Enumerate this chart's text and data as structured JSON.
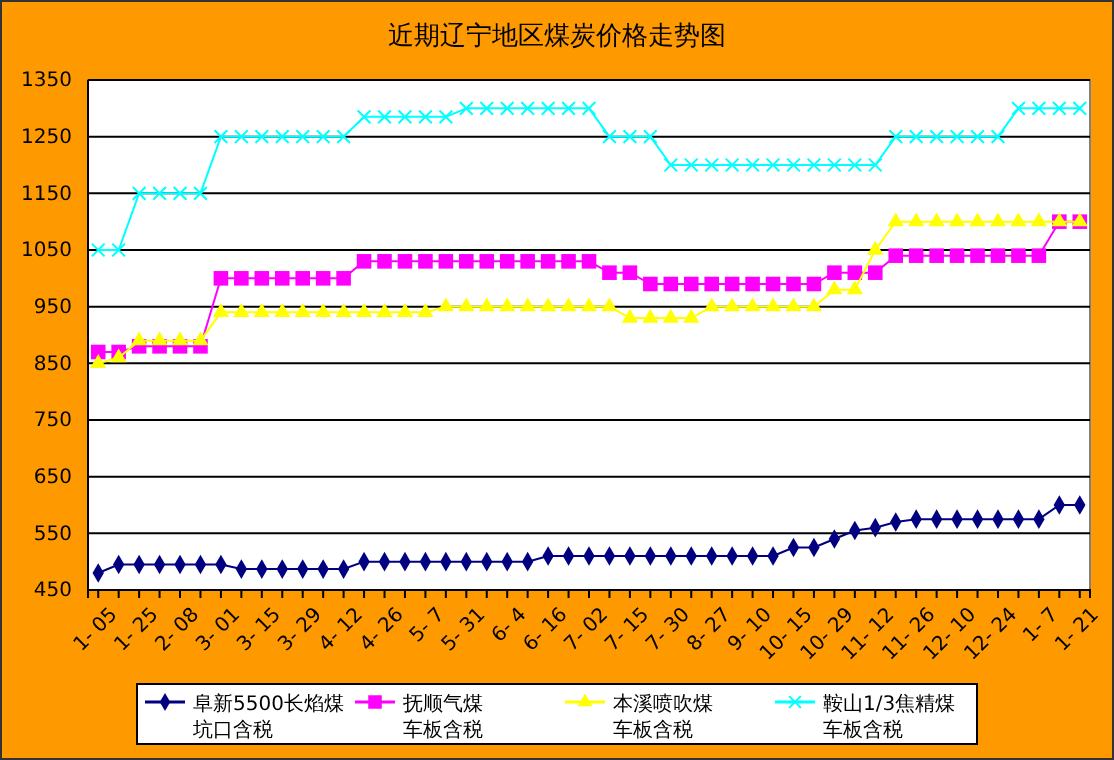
{
  "chart_data": {
    "type": "line",
    "title": "近期辽宁地区煤炭价格走势图",
    "categories": [
      "1- 05",
      null,
      "1- 25",
      null,
      "2- 08",
      null,
      "3- 01",
      null,
      "3- 15",
      null,
      "3- 29",
      null,
      "4- 12",
      null,
      "4- 26",
      null,
      "5- 7",
      null,
      "5- 31",
      null,
      "6- 4",
      null,
      "6- 16",
      null,
      "7- 02",
      null,
      "7- 15",
      null,
      "7- 30",
      null,
      "8- 27",
      null,
      "9- 10",
      null,
      "10- 15",
      null,
      "10- 29",
      null,
      "11- 12",
      null,
      "11- 26",
      null,
      "12- 10",
      null,
      "12- 24",
      null,
      "1- 7",
      null,
      "1- 21"
    ],
    "series": [
      {
        "name": "阜新5500长焰煤坑口含税",
        "color": "#000080",
        "marker": "diamond",
        "values": [
          480,
          495,
          495,
          495,
          495,
          495,
          495,
          487,
          487,
          487,
          487,
          487,
          487,
          500,
          500,
          500,
          500,
          500,
          500,
          500,
          500,
          500,
          510,
          510,
          510,
          510,
          510,
          510,
          510,
          510,
          510,
          510,
          510,
          510,
          525,
          525,
          540,
          555,
          560,
          570,
          575,
          575,
          575,
          575,
          575,
          575,
          575,
          600,
          600
        ]
      },
      {
        "name": "抚顺气煤车板含税",
        "color": "#ff00ff",
        "marker": "square",
        "values": [
          870,
          870,
          880,
          880,
          880,
          880,
          1000,
          1000,
          1000,
          1000,
          1000,
          1000,
          1000,
          1030,
          1030,
          1030,
          1030,
          1030,
          1030,
          1030,
          1030,
          1030,
          1030,
          1030,
          1030,
          1010,
          1010,
          990,
          990,
          990,
          990,
          990,
          990,
          990,
          990,
          990,
          1010,
          1010,
          1010,
          1040,
          1040,
          1040,
          1040,
          1040,
          1040,
          1040,
          1040,
          1100,
          1100
        ]
      },
      {
        "name": "本溪喷吹煤车板含税",
        "color": "#ffff00",
        "marker": "triangle",
        "values": [
          850,
          860,
          890,
          890,
          890,
          890,
          940,
          940,
          940,
          940,
          940,
          940,
          940,
          940,
          940,
          940,
          940,
          950,
          950,
          950,
          950,
          950,
          950,
          950,
          950,
          950,
          930,
          930,
          930,
          930,
          950,
          950,
          950,
          950,
          950,
          950,
          980,
          980,
          1050,
          1100,
          1100,
          1100,
          1100,
          1100,
          1100,
          1100,
          1100,
          1100,
          1100
        ]
      },
      {
        "name": "鞍山1/3焦精煤车板含税",
        "color": "#00ffff",
        "marker": "cross",
        "values": [
          1050,
          1050,
          1150,
          1150,
          1150,
          1150,
          1250,
          1250,
          1250,
          1250,
          1250,
          1250,
          1250,
          1285,
          1285,
          1285,
          1285,
          1285,
          1300,
          1300,
          1300,
          1300,
          1300,
          1300,
          1300,
          1250,
          1250,
          1250,
          1200,
          1200,
          1200,
          1200,
          1200,
          1200,
          1200,
          1200,
          1200,
          1200,
          1200,
          1250,
          1250,
          1250,
          1250,
          1250,
          1250,
          1300,
          1300,
          1300,
          1300
        ]
      }
    ],
    "ylim": [
      450,
      1350
    ],
    "yticks": [
      450,
      550,
      650,
      750,
      850,
      950,
      1050,
      1150,
      1250,
      1350
    ],
    "grid": "y",
    "legend": "bottom"
  }
}
